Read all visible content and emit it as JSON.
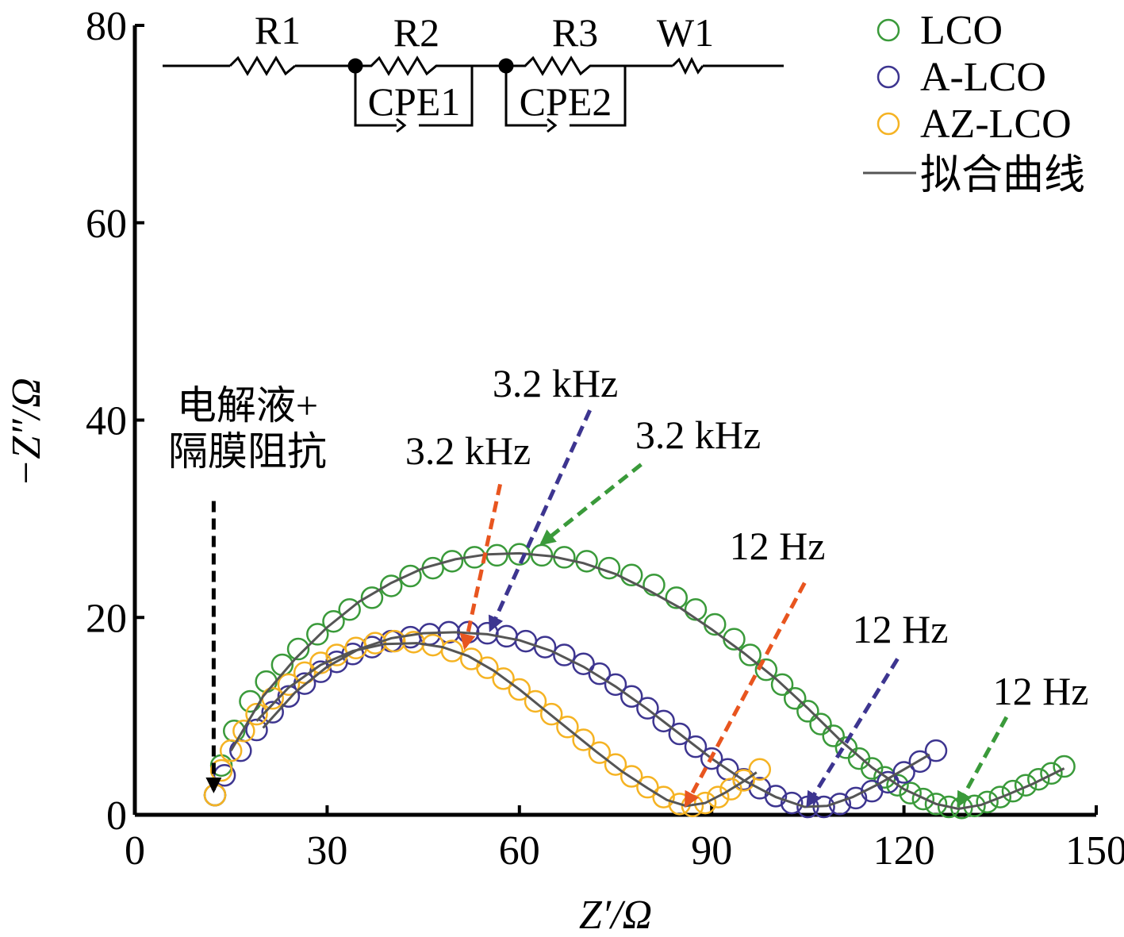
{
  "chart_data": {
    "type": "scatter",
    "xlabel": "Z′/Ω",
    "ylabel": "−Z″/Ω",
    "xlim": [
      0,
      150
    ],
    "ylim": [
      0,
      80
    ],
    "xticks": [
      0,
      30,
      60,
      90,
      120,
      150
    ],
    "yticks": [
      0,
      20,
      40,
      60,
      80
    ],
    "grid": false,
    "legend_position": "top-right",
    "legend": [
      "LCO",
      "A-LCO",
      "AZ-LCO",
      "拟合曲线"
    ],
    "colors": {
      "LCO": "#3a9a3a",
      "A-LCO": "#3d3590",
      "AZ-LCO": "#f5b323",
      "fit": "#555555",
      "axis": "#000000"
    },
    "series": [
      {
        "name": "LCO",
        "points": [
          [
            12.5,
            2.0
          ],
          [
            13.5,
            5.0
          ],
          [
            15.5,
            8.5
          ],
          [
            18.0,
            11.5
          ],
          [
            20.5,
            13.5
          ],
          [
            23.0,
            15.2
          ],
          [
            25.5,
            16.8
          ],
          [
            28.5,
            18.3
          ],
          [
            31.0,
            19.6
          ],
          [
            33.5,
            20.8
          ],
          [
            37.0,
            22.0
          ],
          [
            40.0,
            23.2
          ],
          [
            43.0,
            24.2
          ],
          [
            46.5,
            25.0
          ],
          [
            49.5,
            25.7
          ],
          [
            53.0,
            26.1
          ],
          [
            56.5,
            26.3
          ],
          [
            60.0,
            26.4
          ],
          [
            63.5,
            26.3
          ],
          [
            67.0,
            26.1
          ],
          [
            70.5,
            25.7
          ],
          [
            74.0,
            25.0
          ],
          [
            77.5,
            24.3
          ],
          [
            81.0,
            23.3
          ],
          [
            84.5,
            22.0
          ],
          [
            87.5,
            20.8
          ],
          [
            90.5,
            19.3
          ],
          [
            93.5,
            17.8
          ],
          [
            96.0,
            16.2
          ],
          [
            98.5,
            14.7
          ],
          [
            101.0,
            13.2
          ],
          [
            103.0,
            11.8
          ],
          [
            105.0,
            10.5
          ],
          [
            107.0,
            9.2
          ],
          [
            109.0,
            8.0
          ],
          [
            111.0,
            6.8
          ],
          [
            113.0,
            5.7
          ],
          [
            115.0,
            4.7
          ],
          [
            117.0,
            3.8
          ],
          [
            119.0,
            3.0
          ],
          [
            121.0,
            2.2
          ],
          [
            123.0,
            1.6
          ],
          [
            125.0,
            1.1
          ],
          [
            127.0,
            0.8
          ],
          [
            129.0,
            0.7
          ],
          [
            131.0,
            0.9
          ],
          [
            133.0,
            1.3
          ],
          [
            135.0,
            1.8
          ],
          [
            137.0,
            2.4
          ],
          [
            139.0,
            3.0
          ],
          [
            141.0,
            3.6
          ],
          [
            143.0,
            4.2
          ],
          [
            145.0,
            4.9
          ]
        ]
      },
      {
        "name": "A-LCO",
        "points": [
          [
            12.5,
            2.0
          ],
          [
            14.0,
            4.0
          ],
          [
            16.5,
            6.5
          ],
          [
            19.0,
            8.6
          ],
          [
            21.5,
            10.4
          ],
          [
            24.0,
            12.0
          ],
          [
            26.5,
            13.3
          ],
          [
            29.0,
            14.5
          ],
          [
            31.5,
            15.5
          ],
          [
            34.0,
            16.3
          ],
          [
            37.0,
            17.0
          ],
          [
            40.0,
            17.6
          ],
          [
            43.0,
            18.0
          ],
          [
            46.0,
            18.3
          ],
          [
            49.0,
            18.5
          ],
          [
            52.0,
            18.5
          ],
          [
            55.0,
            18.4
          ],
          [
            58.0,
            18.1
          ],
          [
            61.0,
            17.6
          ],
          [
            64.0,
            17.0
          ],
          [
            67.0,
            16.2
          ],
          [
            70.0,
            15.3
          ],
          [
            72.5,
            14.3
          ],
          [
            75.0,
            13.2
          ],
          [
            77.5,
            12.0
          ],
          [
            80.0,
            10.8
          ],
          [
            82.5,
            9.5
          ],
          [
            85.0,
            8.2
          ],
          [
            87.5,
            6.9
          ],
          [
            90.0,
            5.7
          ],
          [
            92.5,
            4.6
          ],
          [
            95.0,
            3.6
          ],
          [
            97.5,
            2.7
          ],
          [
            100.0,
            1.9
          ],
          [
            102.5,
            1.2
          ],
          [
            105.0,
            0.8
          ],
          [
            107.5,
            0.8
          ],
          [
            110.0,
            1.1
          ],
          [
            112.5,
            1.7
          ],
          [
            115.0,
            2.4
          ],
          [
            117.5,
            3.3
          ],
          [
            120.0,
            4.3
          ],
          [
            122.5,
            5.4
          ],
          [
            125.0,
            6.5
          ]
        ]
      },
      {
        "name": "AZ-LCO",
        "points": [
          [
            12.5,
            2.0
          ],
          [
            13.5,
            4.5
          ],
          [
            15.0,
            6.5
          ],
          [
            17.0,
            8.5
          ],
          [
            19.0,
            10.2
          ],
          [
            21.5,
            11.8
          ],
          [
            24.0,
            13.2
          ],
          [
            26.5,
            14.4
          ],
          [
            29.0,
            15.4
          ],
          [
            31.5,
            16.2
          ],
          [
            34.5,
            16.9
          ],
          [
            37.5,
            17.4
          ],
          [
            40.5,
            17.6
          ],
          [
            43.5,
            17.5
          ],
          [
            46.5,
            17.2
          ],
          [
            49.5,
            16.6
          ],
          [
            52.5,
            15.8
          ],
          [
            55.0,
            14.9
          ],
          [
            57.5,
            13.8
          ],
          [
            60.0,
            12.7
          ],
          [
            62.5,
            11.5
          ],
          [
            65.0,
            10.2
          ],
          [
            67.5,
            8.9
          ],
          [
            70.0,
            7.6
          ],
          [
            72.5,
            6.3
          ],
          [
            75.0,
            5.1
          ],
          [
            77.5,
            3.9
          ],
          [
            80.0,
            2.8
          ],
          [
            82.5,
            1.8
          ],
          [
            85.0,
            1.1
          ],
          [
            87.0,
            0.9
          ],
          [
            89.0,
            1.2
          ],
          [
            91.0,
            1.8
          ],
          [
            93.0,
            2.6
          ],
          [
            95.0,
            3.5
          ],
          [
            97.5,
            4.6
          ]
        ]
      }
    ],
    "fits": [
      {
        "points": [
          [
            15.0,
            6.5
          ],
          [
            20.0,
            12.0
          ],
          [
            25.0,
            15.8
          ],
          [
            30.0,
            19.0
          ],
          [
            35.0,
            21.6
          ],
          [
            40.0,
            23.5
          ],
          [
            45.0,
            25.0
          ],
          [
            50.0,
            25.9
          ],
          [
            55.0,
            26.4
          ],
          [
            60.0,
            26.5
          ],
          [
            65.0,
            26.2
          ],
          [
            70.0,
            25.5
          ],
          [
            75.0,
            24.4
          ],
          [
            80.0,
            22.8
          ],
          [
            85.0,
            21.0
          ],
          [
            90.0,
            18.8
          ],
          [
            95.0,
            16.4
          ],
          [
            100.0,
            13.8
          ],
          [
            105.0,
            10.8
          ],
          [
            110.0,
            7.6
          ],
          [
            115.0,
            4.8
          ],
          [
            120.0,
            2.6
          ],
          [
            125.0,
            1.1
          ],
          [
            128.5,
            0.6
          ],
          [
            132.0,
            1.0
          ],
          [
            136.0,
            2.0
          ],
          [
            140.0,
            3.1
          ],
          [
            145.0,
            4.7
          ]
        ]
      },
      {
        "points": [
          [
            20.0,
            8.8
          ],
          [
            25.0,
            12.4
          ],
          [
            30.0,
            15.0
          ],
          [
            35.0,
            16.8
          ],
          [
            40.0,
            17.9
          ],
          [
            45.0,
            18.4
          ],
          [
            50.0,
            18.5
          ],
          [
            55.0,
            18.3
          ],
          [
            60.0,
            17.7
          ],
          [
            65.0,
            16.6
          ],
          [
            70.0,
            15.0
          ],
          [
            75.0,
            13.0
          ],
          [
            80.0,
            10.7
          ],
          [
            85.0,
            8.2
          ],
          [
            90.0,
            5.7
          ],
          [
            95.0,
            3.5
          ],
          [
            100.0,
            1.8
          ],
          [
            104.5,
            0.8
          ],
          [
            108.0,
            0.9
          ],
          [
            112.0,
            1.8
          ],
          [
            116.0,
            3.1
          ],
          [
            120.0,
            4.6
          ],
          [
            124.0,
            6.1
          ]
        ]
      },
      {
        "points": [
          [
            19.0,
            9.5
          ],
          [
            24.0,
            12.9
          ],
          [
            29.0,
            15.2
          ],
          [
            34.0,
            16.6
          ],
          [
            39.0,
            17.3
          ],
          [
            44.0,
            17.4
          ],
          [
            48.0,
            17.0
          ],
          [
            52.0,
            16.1
          ],
          [
            56.0,
            14.6
          ],
          [
            60.0,
            12.7
          ],
          [
            64.0,
            10.6
          ],
          [
            68.0,
            8.5
          ],
          [
            72.0,
            6.4
          ],
          [
            76.0,
            4.4
          ],
          [
            80.0,
            2.7
          ],
          [
            83.0,
            1.5
          ],
          [
            86.0,
            0.9
          ],
          [
            89.0,
            1.2
          ],
          [
            92.0,
            2.2
          ],
          [
            95.0,
            3.4
          ],
          [
            97.0,
            4.3
          ]
        ]
      }
    ],
    "annotations": [
      {
        "text": "3.2 kHz",
        "color": "#3d3590",
        "arrow_from": [
          71.0,
          41.0
        ],
        "arrow_to": [
          55.5,
          18.8
        ]
      },
      {
        "text": "3.2 kHz",
        "color": "#3a9a3a",
        "arrow_from": [
          79.0,
          35.5
        ],
        "arrow_to": [
          63.5,
          27.5
        ]
      },
      {
        "text": "3.2 kHz",
        "color": "#e8551f",
        "arrow_from": [
          57.0,
          33.5
        ],
        "arrow_to": [
          51.5,
          17.0
        ]
      },
      {
        "text": "12 Hz",
        "color": "#e8551f",
        "arrow_from": [
          104.5,
          23.5
        ],
        "arrow_to": [
          86.0,
          1.0
        ]
      },
      {
        "text": "12 Hz",
        "color": "#3d3590",
        "arrow_from": [
          119.0,
          15.8
        ],
        "arrow_to": [
          105.0,
          1.0
        ]
      },
      {
        "text": "12 Hz",
        "color": "#3a9a3a",
        "arrow_from": [
          136.0,
          9.9
        ],
        "arrow_to": [
          128.5,
          1.0
        ]
      },
      {
        "text": "电解液+隔膜阻抗",
        "lines": [
          "电解液+",
          "隔膜阻抗"
        ],
        "color": "#000000",
        "arrow_from": [
          12.3,
          31.8
        ],
        "arrow_to": [
          12.3,
          2.5
        ]
      }
    ],
    "circuit": {
      "elements": [
        "R1",
        "R2",
        "R3",
        "W1",
        "CPE1",
        "CPE2"
      ]
    }
  }
}
